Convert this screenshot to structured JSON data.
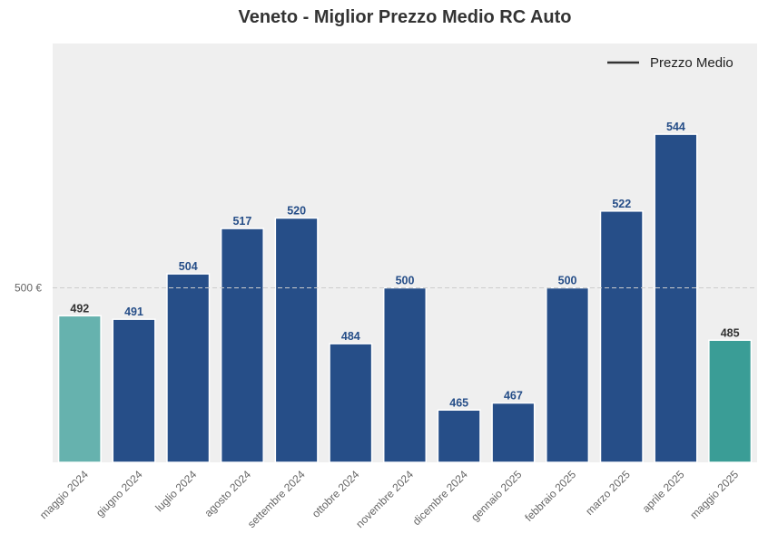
{
  "chart_data": {
    "type": "bar",
    "title": "Veneto - Miglior Prezzo Medio RC Auto",
    "xlabel": "",
    "ylabel": "",
    "categories": [
      "maggio 2024",
      "giugno 2024",
      "luglio 2024",
      "agosto 2024",
      "settembre 2024",
      "ottobre 2024",
      "novembre 2024",
      "dicembre 2024",
      "gennaio 2025",
      "febbraio 2025",
      "marzo 2025",
      "aprile 2025",
      "maggio 2025"
    ],
    "values": [
      492,
      491,
      504,
      517,
      520,
      484,
      500,
      465,
      467,
      500,
      522,
      544,
      485
    ],
    "value_labels": [
      "492",
      "491",
      "504",
      "517",
      "520",
      "484",
      "500",
      "465",
      "467",
      "500",
      "522",
      "544",
      "485"
    ],
    "bar_colors": [
      "#66b2ae",
      "#264e88",
      "#264e88",
      "#264e88",
      "#264e88",
      "#264e88",
      "#264e88",
      "#264e88",
      "#264e88",
      "#264e88",
      "#264e88",
      "#264e88",
      "#3a9d96"
    ],
    "label_colors": [
      "#333333",
      "#264e88",
      "#264e88",
      "#264e88",
      "#264e88",
      "#264e88",
      "#264e88",
      "#264e88",
      "#264e88",
      "#264e88",
      "#264e88",
      "#264e88",
      "#333333"
    ],
    "ylim": [
      450,
      570
    ],
    "yticks": [
      500
    ],
    "ytick_labels": [
      "500 €"
    ],
    "reference_line": {
      "value": 500,
      "style": "dashed",
      "color": "#cccccc"
    },
    "legend": {
      "entries": [
        "Prezzo Medio"
      ],
      "placement": "top-right",
      "line_color": "#333333"
    },
    "background_color": "#efefef",
    "grid": false
  }
}
